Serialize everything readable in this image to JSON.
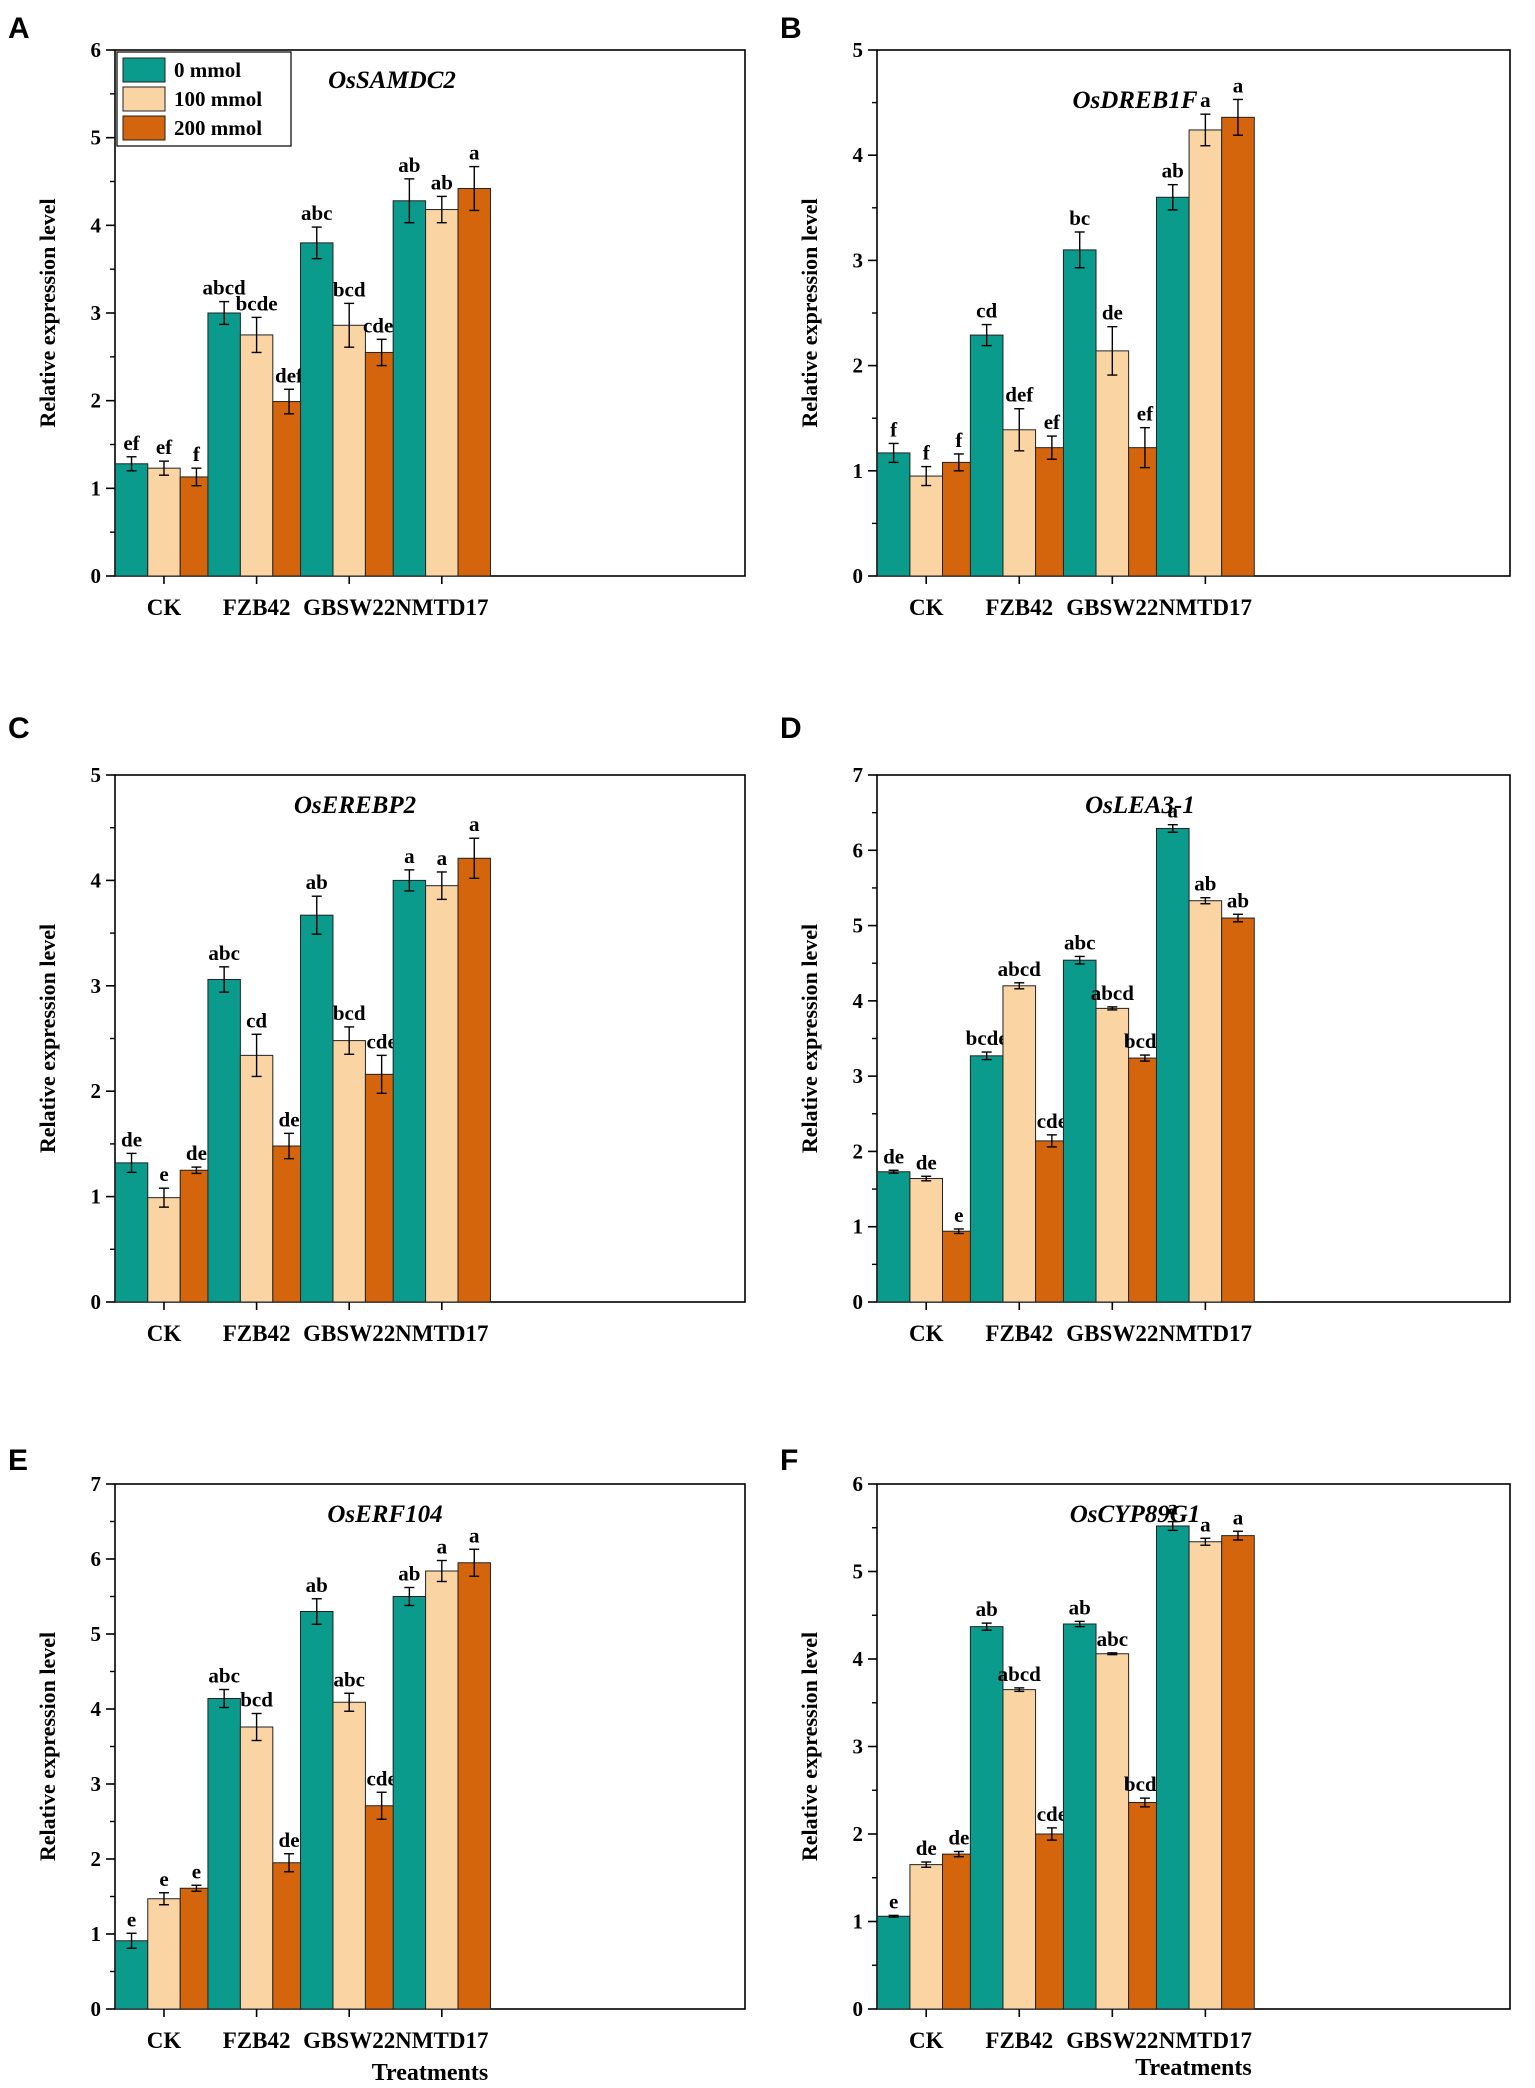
{
  "legend": {
    "entries": [
      {
        "label": "0 mmol",
        "color": "#0b9b8d"
      },
      {
        "label": "100 mmol",
        "color": "#fbd4a4"
      },
      {
        "label": "200 mmol",
        "color": "#d4650c"
      }
    ]
  },
  "x_axis_title": "Treatments",
  "chart_data": [
    {
      "panel": "A",
      "type": "bar",
      "title": "OsSAMDC2",
      "xlabel": "",
      "ylabel": "Relative expression level",
      "ylim": [
        0,
        6
      ],
      "yticks": [
        "0",
        "1",
        "2",
        "3",
        "4",
        "5",
        "6"
      ],
      "categories": [
        "CK",
        "FZB42",
        "GBSW22",
        "NMTD17"
      ],
      "series": [
        {
          "name": "0 mmol",
          "values": [
            1.28,
            3.0,
            3.8,
            4.28
          ],
          "errors": [
            0.08,
            0.13,
            0.18,
            0.25
          ],
          "labels": [
            "ef",
            "abcd",
            "abc",
            "ab"
          ]
        },
        {
          "name": "100 mmol",
          "values": [
            1.23,
            2.75,
            2.86,
            4.18
          ],
          "errors": [
            0.08,
            0.2,
            0.25,
            0.15
          ],
          "labels": [
            "ef",
            "bcde",
            "bcd",
            "ab"
          ]
        },
        {
          "name": "200 mmol",
          "values": [
            1.13,
            1.99,
            2.55,
            4.42
          ],
          "errors": [
            0.1,
            0.14,
            0.15,
            0.25
          ],
          "labels": [
            "f",
            "def",
            "cdef",
            "a"
          ]
        }
      ]
    },
    {
      "panel": "B",
      "type": "bar",
      "title": "OsDREB1F",
      "xlabel": "",
      "ylabel": "Relative expression level",
      "ylim": [
        0,
        5
      ],
      "yticks": [
        "0",
        "1",
        "2",
        "3",
        "4",
        "5"
      ],
      "categories": [
        "CK",
        "FZB42",
        "GBSW22",
        "NMTD17"
      ],
      "series": [
        {
          "name": "0 mmol",
          "values": [
            1.17,
            2.29,
            3.1,
            3.6
          ],
          "errors": [
            0.09,
            0.1,
            0.17,
            0.12
          ],
          "labels": [
            "f",
            "cd",
            "bc",
            "ab"
          ]
        },
        {
          "name": "100 mmol",
          "values": [
            0.95,
            1.39,
            2.14,
            4.24
          ],
          "errors": [
            0.09,
            0.2,
            0.23,
            0.15
          ],
          "labels": [
            "f",
            "def",
            "de",
            "a"
          ]
        },
        {
          "name": "200 mmol",
          "values": [
            1.08,
            1.22,
            1.22,
            4.36
          ],
          "errors": [
            0.08,
            0.11,
            0.19,
            0.17
          ],
          "labels": [
            "f",
            "ef",
            "ef",
            "a"
          ]
        }
      ]
    },
    {
      "panel": "C",
      "type": "bar",
      "title": "OsEREBP2",
      "xlabel": "",
      "ylabel": "Relative expression level",
      "ylim": [
        0,
        5
      ],
      "yticks": [
        "0",
        "1",
        "2",
        "3",
        "4",
        "5"
      ],
      "categories": [
        "CK",
        "FZB42",
        "GBSW22",
        "NMTD17"
      ],
      "series": [
        {
          "name": "0 mmol",
          "values": [
            1.32,
            3.06,
            3.67,
            4.0
          ],
          "errors": [
            0.09,
            0.12,
            0.18,
            0.1
          ],
          "labels": [
            "de",
            "abc",
            "ab",
            "a"
          ]
        },
        {
          "name": "100 mmol",
          "values": [
            0.99,
            2.34,
            2.48,
            3.95
          ],
          "errors": [
            0.09,
            0.2,
            0.13,
            0.13
          ],
          "labels": [
            "e",
            "cd",
            "bcd",
            "a"
          ]
        },
        {
          "name": "200 mmol",
          "values": [
            1.25,
            1.48,
            2.16,
            4.21
          ],
          "errors": [
            0.03,
            0.12,
            0.18,
            0.19
          ],
          "labels": [
            "de",
            "de",
            "cde",
            "a"
          ]
        }
      ]
    },
    {
      "panel": "D",
      "type": "bar",
      "title": "OsLEA3-1",
      "xlabel": "",
      "ylabel": "Relative expression level",
      "ylim": [
        0,
        7
      ],
      "yticks": [
        "0",
        "1",
        "2",
        "3",
        "4",
        "5",
        "6",
        "7"
      ],
      "categories": [
        "CK",
        "FZB42",
        "GBSW22",
        "NMTD17"
      ],
      "series": [
        {
          "name": "0 mmol",
          "values": [
            1.73,
            3.27,
            4.54,
            6.29
          ],
          "errors": [
            0.02,
            0.05,
            0.05,
            0.05
          ],
          "labels": [
            "de",
            "bcde",
            "abc",
            "a"
          ]
        },
        {
          "name": "100 mmol",
          "values": [
            1.64,
            4.2,
            3.9,
            5.33
          ],
          "errors": [
            0.03,
            0.04,
            0.02,
            0.04
          ],
          "labels": [
            "de",
            "abcd",
            "abcd",
            "ab"
          ]
        },
        {
          "name": "200 mmol",
          "values": [
            0.94,
            2.14,
            3.24,
            5.1
          ],
          "errors": [
            0.03,
            0.08,
            0.04,
            0.05
          ],
          "labels": [
            "e",
            "cde",
            "bcde",
            "ab"
          ]
        }
      ]
    },
    {
      "panel": "E",
      "type": "bar",
      "title": "OsERF104",
      "xlabel": "Treatments",
      "ylabel": "Relative expression level",
      "ylim": [
        0,
        7
      ],
      "yticks": [
        "0",
        "1",
        "2",
        "3",
        "4",
        "5",
        "6",
        "7"
      ],
      "categories": [
        "CK",
        "FZB42",
        "GBSW22",
        "NMTD17"
      ],
      "series": [
        {
          "name": "0 mmol",
          "values": [
            0.91,
            4.14,
            5.3,
            5.5
          ],
          "errors": [
            0.1,
            0.12,
            0.17,
            0.12
          ],
          "labels": [
            "e",
            "abc",
            "ab",
            "ab"
          ]
        },
        {
          "name": "100 mmol",
          "values": [
            1.47,
            3.76,
            4.09,
            5.84
          ],
          "errors": [
            0.08,
            0.18,
            0.12,
            0.14
          ],
          "labels": [
            "e",
            "bcd",
            "abc",
            "a"
          ]
        },
        {
          "name": "200 mmol",
          "values": [
            1.61,
            1.95,
            2.71,
            5.95
          ],
          "errors": [
            0.04,
            0.12,
            0.18,
            0.18
          ],
          "labels": [
            "e",
            "de",
            "cde",
            "a"
          ]
        }
      ]
    },
    {
      "panel": "F",
      "type": "bar",
      "title": "OsCYP89G1",
      "xlabel": "Treatments",
      "ylabel": "Relative expression level",
      "ylim": [
        0,
        6
      ],
      "yticks": [
        "0",
        "1",
        "2",
        "3",
        "4",
        "5",
        "6"
      ],
      "categories": [
        "CK",
        "FZB42",
        "GBSW22",
        "NMTD17"
      ],
      "series": [
        {
          "name": "0 mmol",
          "values": [
            1.06,
            4.37,
            4.4,
            5.52
          ],
          "errors": [
            0.01,
            0.04,
            0.03,
            0.05
          ],
          "labels": [
            "e",
            "ab",
            "ab",
            "a"
          ]
        },
        {
          "name": "100 mmol",
          "values": [
            1.65,
            3.65,
            4.06,
            5.34
          ],
          "errors": [
            0.03,
            0.02,
            0.01,
            0.04
          ],
          "labels": [
            "de",
            "abcd",
            "abc",
            "a"
          ]
        },
        {
          "name": "200 mmol",
          "values": [
            1.77,
            2.0,
            2.36,
            5.41
          ],
          "errors": [
            0.03,
            0.07,
            0.05,
            0.05
          ],
          "labels": [
            "de",
            "cde",
            "bcde",
            "a"
          ]
        }
      ]
    }
  ]
}
